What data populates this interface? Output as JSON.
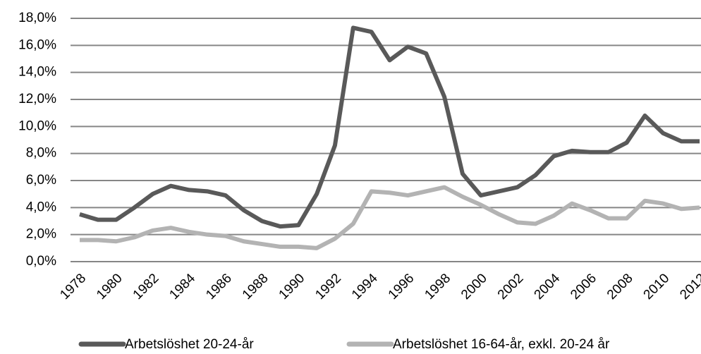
{
  "chart_data": {
    "type": "line",
    "categories": [
      "1978",
      null,
      "1980",
      null,
      "1982",
      null,
      "1984",
      null,
      "1986",
      null,
      "1988",
      null,
      "1990",
      null,
      "1992",
      null,
      "1994",
      null,
      "1996",
      null,
      "1998",
      null,
      "2000",
      null,
      "2002",
      null,
      "2004",
      null,
      "2006",
      null,
      "2008",
      null,
      "2010",
      null,
      "2012"
    ],
    "series": [
      {
        "name": "Arbetslöshet 20-24-år",
        "color": "#595959",
        "values": [
          3.5,
          3.1,
          3.1,
          4.0,
          5.0,
          5.6,
          5.3,
          5.2,
          4.9,
          3.8,
          3.0,
          2.6,
          2.7,
          5.0,
          8.6,
          17.3,
          17.0,
          14.9,
          15.9,
          15.4,
          12.2,
          6.5,
          4.9,
          5.2,
          5.5,
          6.4,
          7.8,
          8.2,
          8.1,
          8.1,
          8.8,
          10.8,
          9.5,
          8.9,
          8.9
        ]
      },
      {
        "name": "Arbetslöshet 16-64-år, exkl. 20-24 år",
        "color": "#b3b3b3",
        "values": [
          1.6,
          1.6,
          1.5,
          1.8,
          2.3,
          2.5,
          2.2,
          2.0,
          1.9,
          1.5,
          1.3,
          1.1,
          1.1,
          1.0,
          1.7,
          2.8,
          5.2,
          5.1,
          4.9,
          5.2,
          5.5,
          4.8,
          4.2,
          3.5,
          2.9,
          2.8,
          3.4,
          4.3,
          3.8,
          3.2,
          3.2,
          4.5,
          4.3,
          3.9,
          4.0
        ]
      }
    ],
    "ylim": [
      0,
      18
    ],
    "yticks": [
      {
        "value": 0,
        "label": "0,0%"
      },
      {
        "value": 2,
        "label": "2,0%"
      },
      {
        "value": 4,
        "label": "4,0%"
      },
      {
        "value": 6,
        "label": "6,0%"
      },
      {
        "value": 8,
        "label": "8,0%"
      },
      {
        "value": 10,
        "label": "10,0%"
      },
      {
        "value": 12,
        "label": "12,0%"
      },
      {
        "value": 14,
        "label": "14,0%"
      },
      {
        "value": 16,
        "label": "16,0%"
      },
      {
        "value": 18,
        "label": "18,0%"
      }
    ],
    "grid": true,
    "legend": "bottom"
  }
}
